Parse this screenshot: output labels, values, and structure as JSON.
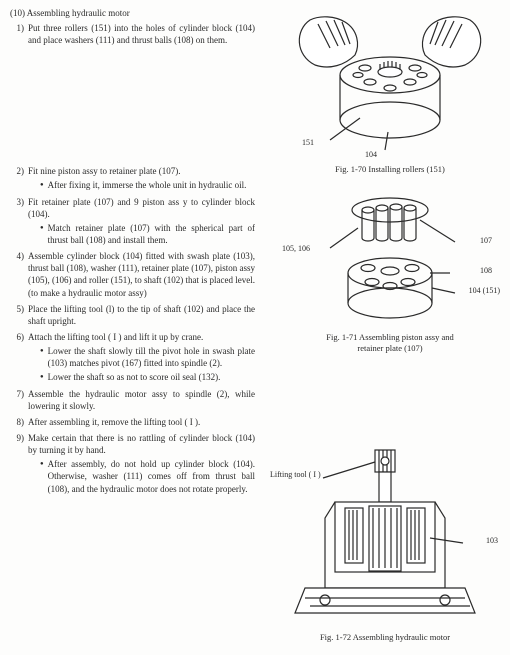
{
  "section": {
    "num": "(10)",
    "title": "Assembling hydraulic motor"
  },
  "steps": [
    {
      "n": "1)",
      "text": "Put three rollers (151) into the holes of cylinder block (104) and place washers (111) and thrust balls (108) on them.",
      "bullets": []
    },
    {
      "n": "2)",
      "text": "Fit nine piston assy to retainer plate (107).",
      "bullets": [
        "After fixing it, immerse the whole unit in hydraulic oil."
      ]
    },
    {
      "n": "3)",
      "text": "Fit retainer plate (107) and 9 piston ass y  to cylinder block (104).",
      "bullets": [
        "Match retainer plate (107) with the spherical part of thrust ball (108) and install them."
      ]
    },
    {
      "n": "4)",
      "text": "Assemble cylinder block (104) fitted with swash plate (103), thrust ball (108), washer (111), retainer plate (107), piston assy (105), (106) and roller (151), to shaft (102) that is placed level. (to make a hydraulic motor assy)",
      "bullets": []
    },
    {
      "n": "5)",
      "text": "Place the lifting tool (l) to the tip of shaft (102) and place the shaft upright.",
      "bullets": []
    },
    {
      "n": "6)",
      "text": "Attach the lifting tool ( I ) and lift it up by crane.",
      "bullets": [
        "Lower the shaft slowly till the pivot hole in swash plate (103) matches pivot (167) fitted into spindle (2).",
        "Lower the shaft so as not to score oil seal (132)."
      ]
    },
    {
      "n": "7)",
      "text": "Assemble the hydraulic motor assy to spindle (2), while lowering it slowly.",
      "bullets": []
    },
    {
      "n": "8)",
      "text": "After assembling it, remove the lifting tool ( I ).",
      "bullets": []
    },
    {
      "n": "9)",
      "text": "Make certain that there is no rattling of cylinder block (104) by turning it by hand.",
      "bullets": [
        "After assembly, do not hold up cylinder block (104). Otherwise, washer (111) comes off from thrust ball (108), and the hydraulic motor does not rotate properly."
      ]
    }
  ],
  "figures": {
    "f1": {
      "caption": "Fig. 1-70   Installing rollers (151)",
      "c1": "151",
      "c2": "104"
    },
    "f2": {
      "caption": "Fig. 1-71   Assembling piston assy and\nretainer plate (107)",
      "c1": "105, 106",
      "c2": "107",
      "c3": "108",
      "c4": "104 (151)"
    },
    "f3": {
      "caption": "Fig. 1-72   Assembling hydraulic motor",
      "c1": "Lifting tool ( I )",
      "c2": "103"
    }
  },
  "colors": {
    "line": "#2a2a2a",
    "bg": "#fdfdfc"
  }
}
